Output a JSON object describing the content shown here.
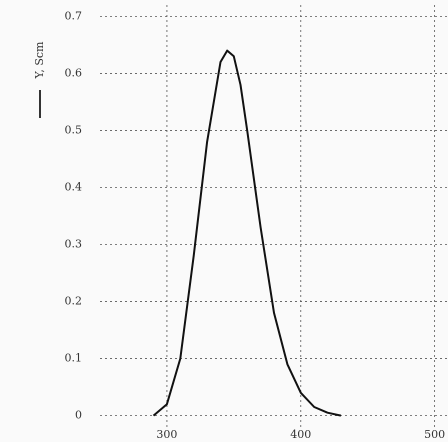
{
  "chart_data": {
    "type": "line",
    "y_label": "Y, Scm",
    "x": [
      290,
      300,
      310,
      320,
      330,
      340,
      345,
      350,
      355,
      360,
      370,
      380,
      390,
      400,
      410,
      420,
      430
    ],
    "series": [
      {
        "color": "#111111",
        "values": [
          0,
          0.02,
          0.1,
          0.28,
          0.48,
          0.62,
          0.64,
          0.63,
          0.58,
          0.5,
          0.33,
          0.18,
          0.09,
          0.04,
          0.015,
          0.005,
          0
        ]
      }
    ],
    "xlim": [
      250,
      510
    ],
    "xticks": [
      300,
      400,
      500
    ],
    "ylim": [
      -0.02,
      0.72
    ],
    "yticks": [
      0,
      0.1,
      0.2,
      0.3,
      0.4,
      0.5,
      0.6,
      0.7
    ],
    "grid": true
  }
}
